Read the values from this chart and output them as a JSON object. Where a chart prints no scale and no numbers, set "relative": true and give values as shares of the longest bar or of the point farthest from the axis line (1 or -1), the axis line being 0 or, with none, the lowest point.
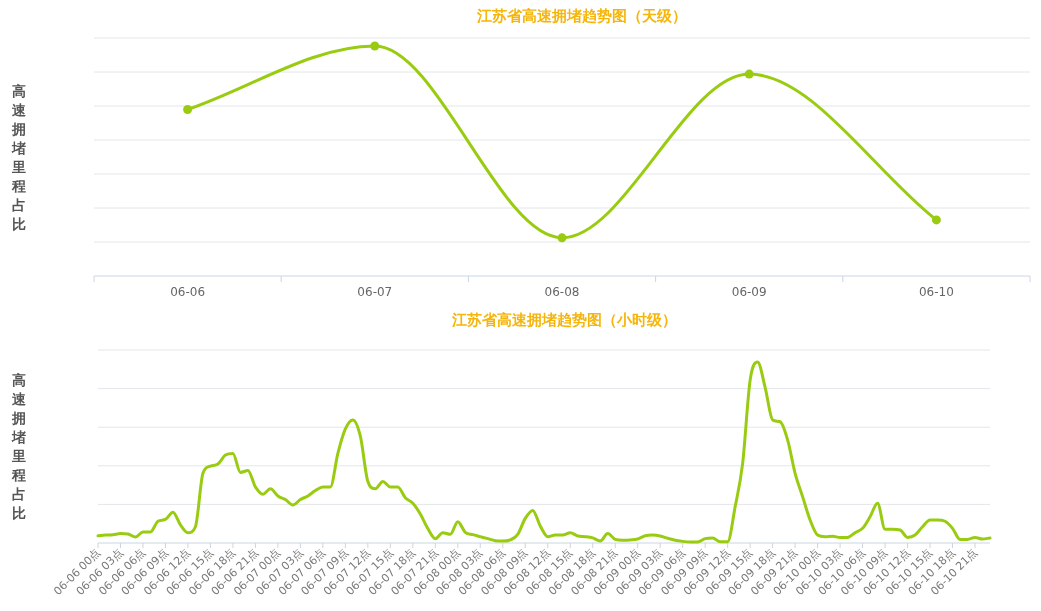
{
  "chart_data": [
    {
      "type": "line",
      "title": "江苏省高速拥堵趋势图（天级）",
      "ylabel": "高速拥堵里程占比",
      "relative": true,
      "grid": "y",
      "marker": "circle",
      "categories": [
        "06-06",
        "06-07",
        "06-08",
        "06-09",
        "06-10"
      ],
      "series": [
        {
          "color": "#99cc11",
          "values": [
            0.724,
            1,
            0.166,
            0.878,
            0.244
          ]
        }
      ]
    },
    {
      "type": "line",
      "title": "江苏省高速拥堵趋势图（小时级）",
      "ylabel": "高速拥堵里程占比",
      "relative": true,
      "grid": "y",
      "marker": "none",
      "categories": [
        "06-06 00点",
        null,
        null,
        "06-06 03点",
        null,
        null,
        "06-06 06点",
        null,
        null,
        "06-06 09点",
        null,
        null,
        "06-06 12点",
        null,
        null,
        "06-06 15点",
        null,
        null,
        "06-06 18点",
        null,
        null,
        "06-06 21点",
        null,
        null,
        "06-07 00点",
        null,
        null,
        "06-07 03点",
        null,
        null,
        "06-07 06点",
        null,
        null,
        "06-07 09点",
        null,
        null,
        "06-07 12点",
        null,
        null,
        "06-07 15点",
        null,
        null,
        "06-07 18点",
        null,
        null,
        "06-07 21点",
        null,
        null,
        "06-08 00点",
        null,
        null,
        "06-08 03点",
        null,
        null,
        "06-08 06点",
        null,
        null,
        "06-08 09点",
        null,
        null,
        "06-08 12点",
        null,
        null,
        "06-08 15点",
        null,
        null,
        "06-08 18点",
        null,
        null,
        "06-08 21点",
        null,
        null,
        "06-09 00点",
        null,
        null,
        "06-09 03点",
        null,
        null,
        "06-09 06点",
        null,
        null,
        "06-09 09点",
        null,
        null,
        "06-09 12点",
        null,
        null,
        "06-09 15点",
        null,
        null,
        "06-09 18点",
        null,
        null,
        "06-09 21点",
        null,
        null,
        "06-10 00点",
        null,
        null,
        "06-10 03点",
        null,
        null,
        "06-10 06点",
        null,
        null,
        "06-10 09点",
        null,
        null,
        "06-10 12点",
        null,
        null,
        "06-10 15点",
        null,
        null,
        "06-10 18点",
        null,
        null,
        "06-10 21点",
        null,
        null
      ],
      "series": [
        {
          "color": "#99cc11",
          "values": [
            0.04,
            0.044,
            0.046,
            0.052,
            0.05,
            0.033,
            0.061,
            0.061,
            0.12,
            0.13,
            0.17,
            0.1,
            0.057,
            0.09,
            0.385,
            0.425,
            0.436,
            0.486,
            0.495,
            0.39,
            0.4,
            0.31,
            0.27,
            0.3,
            0.26,
            0.24,
            0.21,
            0.24,
            0.26,
            0.29,
            0.31,
            0.31,
            0.495,
            0.63,
            0.68,
            0.59,
            0.34,
            0.3,
            0.34,
            0.31,
            0.31,
            0.25,
            0.22,
            0.16,
            0.08,
            0.024,
            0.057,
            0.048,
            0.118,
            0.059,
            0.046,
            0.035,
            0.024,
            0.013,
            0.011,
            0.017,
            0.048,
            0.136,
            0.18,
            0.094,
            0.035,
            0.044,
            0.044,
            0.057,
            0.039,
            0.035,
            0.028,
            0.011,
            0.052,
            0.02,
            0.015,
            0.017,
            0.022,
            0.04,
            0.044,
            0.039,
            0.026,
            0.015,
            0.009,
            0.006,
            0.006,
            0.024,
            0.028,
            0.007,
            0.007,
            0.2,
            0.44,
            0.9,
            1,
            0.86,
            0.68,
            0.67,
            0.57,
            0.385,
            0.256,
            0.127,
            0.044,
            0.035,
            0.037,
            0.031,
            0.031,
            0.057,
            0.081,
            0.145,
            0.22,
            0.076,
            0.076,
            0.072,
            0.031,
            0.044,
            0.09,
            0.127,
            0.127,
            0.12,
            0.081,
            0.02,
            0.02,
            0.031,
            0.022,
            0.028
          ]
        }
      ]
    }
  ]
}
